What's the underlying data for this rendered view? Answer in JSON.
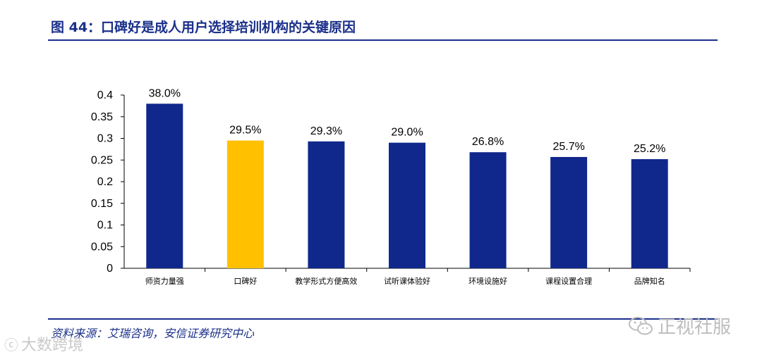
{
  "figure": {
    "title": "图 44：口碑好是成人用户选择培训机构的关键原因",
    "source": "资料来源：艾瑞咨询，安信证券研究中心"
  },
  "watermarks": {
    "left_text": "大数跨境",
    "right_text": "正视社服"
  },
  "colors": {
    "accent": "#1a2f8a",
    "bar": "#10288c",
    "highlight": "#ffc000"
  },
  "chart_data": {
    "type": "bar",
    "categories": [
      "师资力量强",
      "口碑好",
      "教学形式方便高效",
      "试听课体验好",
      "环境设施好",
      "课程设置合理",
      "品牌知名"
    ],
    "values": [
      0.38,
      0.295,
      0.293,
      0.29,
      0.268,
      0.257,
      0.252
    ],
    "data_labels": [
      "38.0%",
      "29.5%",
      "29.3%",
      "29.0%",
      "26.8%",
      "25.7%",
      "25.2%"
    ],
    "highlight_index": 1,
    "yticks": [
      "0",
      "0.05",
      "0.1",
      "0.15",
      "0.2",
      "0.25",
      "0.3",
      "0.35",
      "0.4"
    ],
    "ylim": [
      0,
      0.4
    ],
    "xlabel": "",
    "ylabel": "",
    "grid": false,
    "legend": "none"
  }
}
